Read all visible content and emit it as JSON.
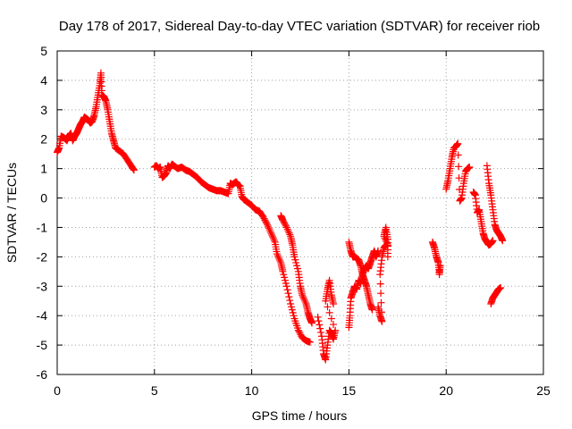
{
  "chart_data": {
    "type": "scatter",
    "title": "Day 178 of 2017, Sidereal Day-to-day VTEC variation (SDTVAR) for receiver riob",
    "xlabel": "GPS time / hours",
    "ylabel": "SDTVAR / TECUs",
    "xlim": [
      0,
      25
    ],
    "ylim": [
      -6,
      5
    ],
    "xticks": [
      0,
      5,
      10,
      15,
      20,
      25
    ],
    "yticks": [
      -6,
      -5,
      -4,
      -3,
      -2,
      -1,
      0,
      1,
      2,
      3,
      4,
      5
    ],
    "xtick_labels": [
      "0",
      "5",
      "10",
      "15",
      "20",
      "25"
    ],
    "ytick_labels": [
      "-6",
      "-5",
      "-4",
      "-3",
      "-2",
      "-1",
      "0",
      "1",
      "2",
      "3",
      "4",
      "5"
    ],
    "grid": true,
    "marker": "plus",
    "color": "#ff0000",
    "series": [
      {
        "name": "riob",
        "segments": [
          [
            [
              0.0,
              1.55
            ],
            [
              0.1,
              1.7
            ],
            [
              0.2,
              2.1
            ],
            [
              0.35,
              2.05
            ],
            [
              0.5,
              1.95
            ],
            [
              0.6,
              2.1
            ],
            [
              0.7,
              2.2
            ],
            [
              0.8,
              1.95
            ],
            [
              0.9,
              2.1
            ],
            [
              1.0,
              2.2
            ],
            [
              1.1,
              2.35
            ],
            [
              1.2,
              2.5
            ],
            [
              1.3,
              2.6
            ],
            [
              1.4,
              2.75
            ],
            [
              1.5,
              2.7
            ],
            [
              1.6,
              2.65
            ],
            [
              1.7,
              2.55
            ],
            [
              1.8,
              2.6
            ],
            [
              1.9,
              2.8
            ],
            [
              2.0,
              3.1
            ],
            [
              2.1,
              3.5
            ],
            [
              2.2,
              3.9
            ],
            [
              2.25,
              4.25
            ],
            [
              2.3,
              3.5
            ],
            [
              2.4,
              3.45
            ],
            [
              2.5,
              3.3
            ],
            [
              2.6,
              3.0
            ],
            [
              2.7,
              2.6
            ],
            [
              2.8,
              2.2
            ],
            [
              2.9,
              1.95
            ],
            [
              3.0,
              1.7
            ],
            [
              3.2,
              1.6
            ],
            [
              3.4,
              1.5
            ],
            [
              3.6,
              1.3
            ],
            [
              3.8,
              1.1
            ],
            [
              3.95,
              0.95
            ]
          ],
          [
            [
              5.0,
              1.05
            ],
            [
              5.1,
              1.1
            ],
            [
              5.2,
              1.0
            ],
            [
              5.3,
              1.05
            ],
            [
              5.4,
              0.7
            ],
            [
              5.5,
              0.75
            ],
            [
              5.6,
              0.85
            ],
            [
              5.7,
              1.1
            ],
            [
              5.8,
              1.0
            ],
            [
              5.9,
              1.15
            ],
            [
              6.0,
              1.1
            ],
            [
              6.2,
              1.0
            ],
            [
              6.4,
              1.05
            ],
            [
              6.6,
              0.95
            ],
            [
              6.8,
              0.9
            ],
            [
              7.0,
              0.8
            ],
            [
              7.2,
              0.7
            ],
            [
              7.4,
              0.55
            ],
            [
              7.6,
              0.45
            ],
            [
              7.8,
              0.35
            ],
            [
              8.0,
              0.3
            ],
            [
              8.2,
              0.25
            ],
            [
              8.4,
              0.25
            ],
            [
              8.6,
              0.2
            ],
            [
              8.8,
              0.15
            ],
            [
              8.9,
              0.5
            ],
            [
              9.0,
              0.45
            ],
            [
              9.1,
              0.5
            ],
            [
              9.2,
              0.55
            ],
            [
              9.3,
              0.45
            ],
            [
              9.4,
              0.4
            ],
            [
              9.5,
              0.05
            ],
            [
              9.6,
              -0.05
            ],
            [
              9.8,
              -0.15
            ],
            [
              10.0,
              -0.25
            ],
            [
              10.2,
              -0.4
            ],
            [
              10.4,
              -0.45
            ],
            [
              10.6,
              -0.65
            ],
            [
              10.8,
              -0.9
            ],
            [
              11.0,
              -1.2
            ],
            [
              11.2,
              -1.5
            ],
            [
              11.3,
              -1.9
            ],
            [
              11.5,
              -2.2
            ],
            [
              11.6,
              -2.5
            ],
            [
              11.8,
              -3.0
            ],
            [
              12.0,
              -3.6
            ],
            [
              12.2,
              -4.1
            ],
            [
              12.4,
              -4.5
            ],
            [
              12.6,
              -4.75
            ],
            [
              12.8,
              -4.85
            ],
            [
              13.0,
              -4.9
            ]
          ],
          [
            [
              11.5,
              -0.6
            ],
            [
              11.6,
              -0.75
            ],
            [
              11.8,
              -1.0
            ],
            [
              12.0,
              -1.3
            ],
            [
              12.1,
              -1.6
            ],
            [
              12.2,
              -2.0
            ],
            [
              12.4,
              -2.5
            ],
            [
              12.5,
              -3.0
            ],
            [
              12.6,
              -3.3
            ],
            [
              12.8,
              -3.6
            ],
            [
              12.9,
              -3.9
            ],
            [
              13.0,
              -4.1
            ],
            [
              13.1,
              -4.25
            ]
          ],
          [
            [
              13.4,
              -4.05
            ],
            [
              13.6,
              -4.7
            ],
            [
              13.7,
              -5.3
            ],
            [
              13.8,
              -5.5
            ],
            [
              13.9,
              -5.0
            ],
            [
              14.0,
              -4.5
            ],
            [
              14.1,
              -4.6
            ],
            [
              14.2,
              -4.8
            ],
            [
              14.3,
              -4.5
            ],
            [
              13.8,
              -3.5
            ],
            [
              13.9,
              -3.1
            ],
            [
              14.0,
              -2.8
            ],
            [
              14.1,
              -3.3
            ],
            [
              14.2,
              -3.6
            ]
          ],
          [
            [
              15.0,
              -4.4
            ],
            [
              15.05,
              -4.0
            ],
            [
              15.1,
              -3.4
            ],
            [
              15.2,
              -3.2
            ],
            [
              15.3,
              -3.0
            ],
            [
              15.4,
              -3.1
            ],
            [
              15.5,
              -2.8
            ],
            [
              15.6,
              -2.9
            ],
            [
              15.7,
              -2.6
            ],
            [
              15.8,
              -2.4
            ],
            [
              15.9,
              -2.3
            ],
            [
              16.0,
              -2.4
            ],
            [
              16.1,
              -2.2
            ],
            [
              16.2,
              -2.0
            ],
            [
              16.3,
              -1.8
            ],
            [
              16.4,
              -2.0
            ],
            [
              16.5,
              -1.8
            ]
          ],
          [
            [
              15.0,
              -1.5
            ],
            [
              15.1,
              -1.8
            ],
            [
              15.2,
              -2.0
            ],
            [
              15.3,
              -2.0
            ],
            [
              15.5,
              -2.1
            ],
            [
              15.6,
              -2.3
            ],
            [
              15.7,
              -2.6
            ],
            [
              15.8,
              -2.8
            ],
            [
              15.9,
              -3.0
            ],
            [
              16.0,
              -3.3
            ],
            [
              16.1,
              -3.6
            ],
            [
              16.2,
              -3.8
            ]
          ],
          [
            [
              16.5,
              -3.7
            ],
            [
              16.6,
              -4.0
            ],
            [
              16.7,
              -4.2
            ],
            [
              16.6,
              -2.6
            ],
            [
              16.7,
              -2.0
            ],
            [
              16.8,
              -1.7
            ],
            [
              16.9,
              -1.6
            ],
            [
              17.0,
              -1.6
            ],
            [
              16.8,
              -1.3
            ],
            [
              16.9,
              -1.0
            ],
            [
              17.0,
              -1.4
            ],
            [
              17.0,
              -2.0
            ]
          ],
          [
            [
              19.3,
              -1.5
            ],
            [
              19.4,
              -1.7
            ],
            [
              19.5,
              -2.0
            ],
            [
              19.6,
              -2.2
            ],
            [
              19.65,
              -2.6
            ],
            [
              19.7,
              -2.3
            ]
          ],
          [
            [
              20.0,
              0.3
            ],
            [
              20.1,
              0.6
            ],
            [
              20.2,
              1.0
            ],
            [
              20.3,
              1.4
            ],
            [
              20.4,
              1.7
            ],
            [
              20.5,
              1.75
            ],
            [
              20.6,
              1.85
            ],
            [
              20.7,
              -0.1
            ],
            [
              20.8,
              0.0
            ],
            [
              20.9,
              0.5
            ],
            [
              21.0,
              0.9
            ],
            [
              21.1,
              1.0
            ],
            [
              21.2,
              1.05
            ]
          ],
          [
            [
              21.4,
              0.2
            ],
            [
              21.5,
              0.1
            ],
            [
              21.6,
              -0.5
            ],
            [
              21.7,
              -0.4
            ],
            [
              21.8,
              -0.8
            ],
            [
              21.9,
              -1.2
            ],
            [
              22.0,
              -1.4
            ],
            [
              22.1,
              -1.5
            ],
            [
              22.2,
              -1.6
            ],
            [
              22.3,
              -1.55
            ],
            [
              22.4,
              -1.45
            ]
          ],
          [
            [
              22.1,
              1.1
            ],
            [
              22.2,
              0.5
            ],
            [
              22.3,
              0.1
            ],
            [
              22.4,
              -0.4
            ],
            [
              22.5,
              -0.9
            ],
            [
              22.6,
              -1.1
            ],
            [
              22.7,
              -1.2
            ],
            [
              22.8,
              -1.3
            ],
            [
              22.9,
              -1.45
            ]
          ],
          [
            [
              22.3,
              -3.6
            ],
            [
              22.4,
              -3.4
            ],
            [
              22.5,
              -3.3
            ],
            [
              22.6,
              -3.2
            ],
            [
              22.7,
              -3.1
            ],
            [
              22.8,
              -3.05
            ]
          ]
        ]
      }
    ]
  }
}
